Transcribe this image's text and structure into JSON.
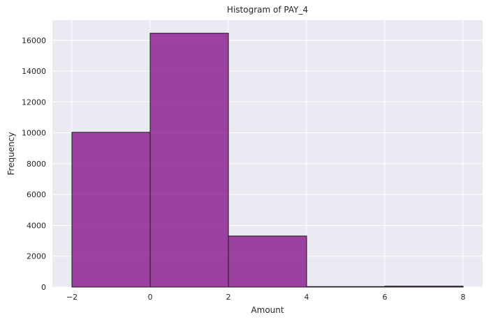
{
  "chart_data": {
    "type": "bar",
    "title": "Histogram of PAY_4",
    "xlabel": "Amount",
    "ylabel": "Frequency",
    "bins": [
      {
        "x0": -2,
        "x1": 0,
        "count": 10035
      },
      {
        "x0": 0,
        "x1": 2,
        "count": 16455
      },
      {
        "x0": 2,
        "x1": 4,
        "count": 3309
      },
      {
        "x0": 4,
        "x1": 6,
        "count": 32
      },
      {
        "x0": 6,
        "x1": 8,
        "count": 60
      }
    ],
    "xlim": [
      -2.5,
      8.5
    ],
    "ylim": [
      0,
      17300
    ],
    "xticks": [
      -2,
      0,
      2,
      4,
      6,
      8
    ],
    "yticks": [
      0,
      2000,
      4000,
      6000,
      8000,
      10000,
      12000,
      14000,
      16000
    ],
    "grid": true,
    "legend": "none",
    "colors": {
      "plot_background": "#eaeaf2",
      "grid": "#ffffff",
      "bar_fill": "#800080",
      "bar_opacity": 0.72,
      "bar_edge": "#1a1a1a"
    }
  }
}
